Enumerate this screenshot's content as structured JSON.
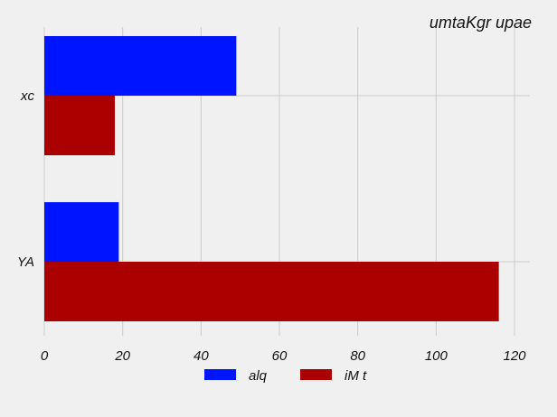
{
  "chart_data": {
    "type": "bar",
    "orientation": "horizontal",
    "title": "umtaKgr upae",
    "categories": [
      "xc",
      "YA"
    ],
    "series": [
      {
        "name": "alq",
        "values": [
          49,
          19
        ],
        "color": "#0015ff"
      },
      {
        "name": "iM t",
        "values": [
          18,
          116
        ],
        "color": "#aa0000"
      }
    ],
    "xlim": [
      0,
      120
    ],
    "xticks": [
      0,
      20,
      40,
      60,
      80,
      100,
      120
    ],
    "grid": true,
    "legend_position": "bottom-center",
    "background": "#f0f0f0",
    "grid_color": "#cbcbcb"
  }
}
